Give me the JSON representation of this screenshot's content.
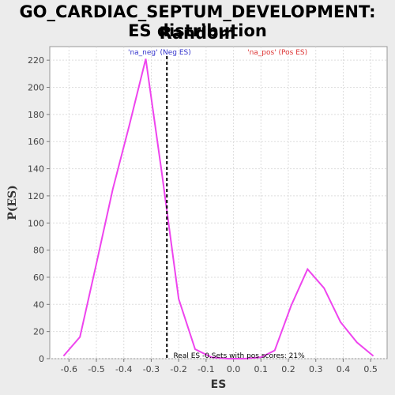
{
  "chart_data": {
    "type": "line",
    "title_line1": "GO_CARDIAC_SEPTUM_DEVELOPMENT: Random",
    "title_line2": "ES distribution",
    "xlabel": "ES",
    "ylabel": "P(ES)",
    "xlim": [
      -0.67,
      0.56
    ],
    "ylim": [
      0,
      230
    ],
    "x_ticks": [
      -0.6,
      -0.5,
      -0.4,
      -0.3,
      -0.2,
      -0.1,
      0.0,
      0.1,
      0.2,
      0.3,
      0.4,
      0.5
    ],
    "x_tick_labels": [
      "-0.6",
      "-0.5",
      "-0.4",
      "-0.3",
      "-0.2",
      "-0.1",
      "0.0",
      "0.1",
      "0.2",
      "0.3",
      "0.4",
      "0.5"
    ],
    "y_ticks": [
      0,
      20,
      40,
      60,
      80,
      100,
      120,
      140,
      160,
      180,
      200,
      220
    ],
    "y_tick_labels": [
      "0",
      "20",
      "40",
      "60",
      "80",
      "100",
      "120",
      "140",
      "160",
      "180",
      "200",
      "220"
    ],
    "grid": true,
    "series": [
      {
        "color": "#ee44ee",
        "x": [
          -0.62,
          -0.56,
          -0.5,
          -0.44,
          -0.38,
          -0.32,
          -0.26,
          -0.2,
          -0.14,
          -0.08,
          -0.02,
          0.04,
          0.1,
          0.15,
          0.21,
          0.27,
          0.33,
          0.39,
          0.45,
          0.51
        ],
        "y": [
          2,
          16,
          70,
          125,
          172,
          221,
          135,
          44,
          7,
          1,
          0,
          0,
          1,
          6,
          39,
          66,
          52,
          27,
          12,
          2
        ]
      }
    ],
    "real_es_line": {
      "x": -0.243,
      "color": "#000000",
      "style": "dashed"
    },
    "annotations": {
      "neg_label": "'na_neg' (Neg ES)",
      "neg_color": "#3333cc",
      "pos_label": "'na_pos' (Pos ES)",
      "pos_color": "#dd3333",
      "bottom_text": "Real ES -0.Sets with pos scores: 21%"
    }
  }
}
